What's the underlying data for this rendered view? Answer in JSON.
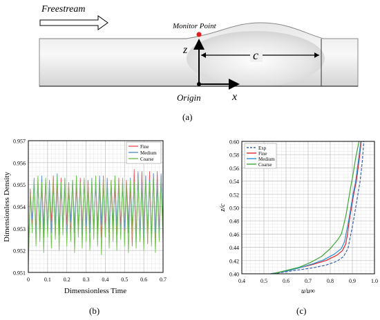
{
  "panel_a": {
    "freestream_label": "Freestream",
    "monitor_point_label": "Monitor Point",
    "origin_label": "Origin",
    "z_label": "z",
    "x_label": "x",
    "c_label": "c",
    "caption": "(a)",
    "colors": {
      "monitor_point": "#e02020",
      "body_light": "#f4f4f4",
      "body_dark": "#c8c8c8"
    }
  },
  "panel_b": {
    "caption": "(b)"
  },
  "panel_c": {
    "caption": "(c)"
  },
  "chart_data": [
    {
      "type": "line",
      "xlabel": "Dimensionless Time",
      "ylabel": "Dimensionless Density",
      "xlim": [
        0,
        0.7
      ],
      "ylim": [
        0.951,
        0.957
      ],
      "xticks": [
        "0",
        "0.1",
        "0.2",
        "0.3",
        "0.4",
        "0.5",
        "0.6",
        "0.7"
      ],
      "yticks": [
        "0.951",
        "0.952",
        "0.953",
        "0.954",
        "0.955",
        "0.956",
        "0.957"
      ],
      "grid": true,
      "legend": "top-right",
      "series": [
        {
          "name": "Fine",
          "color": "#e8565a",
          "x": [
            0,
            0.01,
            0.02,
            0.03,
            0.04,
            0.05,
            0.06,
            0.07,
            0.08,
            0.09,
            0.1,
            0.11,
            0.12,
            0.13,
            0.14,
            0.15,
            0.16,
            0.17,
            0.18,
            0.19,
            0.2,
            0.21,
            0.22,
            0.23,
            0.24,
            0.25,
            0.26,
            0.27,
            0.28,
            0.29,
            0.3,
            0.31,
            0.32,
            0.33,
            0.34,
            0.35,
            0.36,
            0.37,
            0.38,
            0.39,
            0.4,
            0.41,
            0.42,
            0.43,
            0.44,
            0.45,
            0.46,
            0.47,
            0.48,
            0.49,
            0.5,
            0.51,
            0.52,
            0.53,
            0.54,
            0.55,
            0.56,
            0.57,
            0.58,
            0.59,
            0.6,
            0.61,
            0.62,
            0.63,
            0.64,
            0.65,
            0.66,
            0.67,
            0.68,
            0.69,
            0.7
          ],
          "y": [
            0.9515,
            0.9548,
            0.9532,
            0.9551,
            0.9529,
            0.9553,
            0.9527,
            0.955,
            0.9531,
            0.9552,
            0.9528,
            0.9549,
            0.9533,
            0.9554,
            0.9526,
            0.955,
            0.953,
            0.9553,
            0.9529,
            0.9548,
            0.9532,
            0.9551,
            0.9527,
            0.9552,
            0.9531,
            0.9549,
            0.9528,
            0.9553,
            0.953,
            0.9551,
            0.9529,
            0.9552,
            0.9532,
            0.955,
            0.9527,
            0.9553,
            0.9531,
            0.9549,
            0.9526,
            0.9554,
            0.953,
            0.9551,
            0.9528,
            0.9552,
            0.9533,
            0.9548,
            0.9527,
            0.9553,
            0.9531,
            0.955,
            0.9529,
            0.9552,
            0.9532,
            0.9549,
            0.9522,
            0.9557,
            0.9526,
            0.9555,
            0.9524,
            0.9556,
            0.9527,
            0.9554,
            0.9523,
            0.9556,
            0.9526,
            0.9555,
            0.9525,
            0.9556,
            0.9528,
            0.9554,
            0.9526
          ]
        },
        {
          "name": "Medium",
          "color": "#5a8fd6",
          "x": [
            0,
            0.01,
            0.02,
            0.03,
            0.04,
            0.05,
            0.06,
            0.07,
            0.08,
            0.09,
            0.1,
            0.11,
            0.12,
            0.13,
            0.14,
            0.15,
            0.16,
            0.17,
            0.18,
            0.19,
            0.2,
            0.21,
            0.22,
            0.23,
            0.24,
            0.25,
            0.26,
            0.27,
            0.28,
            0.29,
            0.3,
            0.31,
            0.32,
            0.33,
            0.34,
            0.35,
            0.36,
            0.37,
            0.38,
            0.39,
            0.4,
            0.41,
            0.42,
            0.43,
            0.44,
            0.45,
            0.46,
            0.47,
            0.48,
            0.49,
            0.5,
            0.51,
            0.52,
            0.53,
            0.54,
            0.55,
            0.56,
            0.57,
            0.58,
            0.59,
            0.6,
            0.61,
            0.62,
            0.63,
            0.64,
            0.65,
            0.66,
            0.67,
            0.68,
            0.69,
            0.7
          ],
          "y": [
            0.9518,
            0.9545,
            0.9534,
            0.9553,
            0.9527,
            0.955,
            0.9531,
            0.9554,
            0.9526,
            0.9551,
            0.953,
            0.9552,
            0.9528,
            0.9549,
            0.9532,
            0.9555,
            0.9527,
            0.955,
            0.9531,
            0.9553,
            0.9526,
            0.9549,
            0.9533,
            0.9552,
            0.9528,
            0.9554,
            0.953,
            0.955,
            0.9527,
            0.9552,
            0.9531,
            0.9549,
            0.9528,
            0.9553,
            0.953,
            0.9551,
            0.9527,
            0.9554,
            0.9532,
            0.955,
            0.9526,
            0.9553,
            0.953,
            0.9549,
            0.9529,
            0.9554,
            0.9531,
            0.955,
            0.9527,
            0.9552,
            0.953,
            0.9549,
            0.9528,
            0.9553,
            0.9531,
            0.955,
            0.9523,
            0.9556,
            0.9527,
            0.9553,
            0.9526,
            0.9554,
            0.9529,
            0.9552,
            0.9525,
            0.9555,
            0.9528,
            0.9553,
            0.9527,
            0.9555,
            0.9529
          ]
        },
        {
          "name": "Coarse",
          "color": "#6cc24a",
          "x": [
            0,
            0.01,
            0.02,
            0.03,
            0.04,
            0.05,
            0.06,
            0.07,
            0.08,
            0.09,
            0.1,
            0.11,
            0.12,
            0.13,
            0.14,
            0.15,
            0.16,
            0.17,
            0.18,
            0.19,
            0.2,
            0.21,
            0.22,
            0.23,
            0.24,
            0.25,
            0.26,
            0.27,
            0.28,
            0.29,
            0.3,
            0.31,
            0.32,
            0.33,
            0.34,
            0.35,
            0.36,
            0.37,
            0.38,
            0.39,
            0.4,
            0.41,
            0.42,
            0.43,
            0.44,
            0.45,
            0.46,
            0.47,
            0.48,
            0.49,
            0.5,
            0.51,
            0.52,
            0.53,
            0.54,
            0.55,
            0.56,
            0.57,
            0.58,
            0.59,
            0.6,
            0.61,
            0.62,
            0.63,
            0.64,
            0.65,
            0.66,
            0.67,
            0.68,
            0.69,
            0.7
          ],
          "y": [
            0.9512,
            0.9546,
            0.9528,
            0.9552,
            0.9522,
            0.9554,
            0.9524,
            0.9551,
            0.9519,
            0.9553,
            0.9526,
            0.955,
            0.9521,
            0.9552,
            0.9525,
            0.9554,
            0.952,
            0.9551,
            0.9527,
            0.9553,
            0.9522,
            0.955,
            0.9524,
            0.9552,
            0.9519,
            0.9554,
            0.9526,
            0.9551,
            0.9521,
            0.9553,
            0.9524,
            0.955,
            0.952,
            0.9552,
            0.9525,
            0.9554,
            0.9522,
            0.9551,
            0.9518,
            0.9553,
            0.9526,
            0.955,
            0.9521,
            0.9552,
            0.9524,
            0.9554,
            0.952,
            0.9551,
            0.9525,
            0.9553,
            0.9522,
            0.955,
            0.9519,
            0.9552,
            0.9526,
            0.9551,
            0.9521,
            0.9553,
            0.9524,
            0.955,
            0.952,
            0.9552,
            0.9525,
            0.9551,
            0.9522,
            0.9553,
            0.9519,
            0.955,
            0.9524,
            0.9552,
            0.9523
          ]
        }
      ]
    },
    {
      "type": "line",
      "xlabel": "u/u∞",
      "ylabel": "z/c",
      "xlim": [
        0.4,
        1.0
      ],
      "ylim": [
        0.4,
        0.6
      ],
      "xticks": [
        "0.4",
        "0.5",
        "0.6",
        "0.7",
        "0.8",
        "0.9",
        "1.0"
      ],
      "yticks": [
        "0.40",
        "0.42",
        "0.44",
        "0.46",
        "0.48",
        "0.50",
        "0.52",
        "0.54",
        "0.56",
        "0.58",
        "0.60"
      ],
      "grid": true,
      "legend": "top-left",
      "series": [
        {
          "name": "Exp",
          "color": "#3a5fb0",
          "dashed": true,
          "x": [
            0.54,
            0.6,
            0.66,
            0.72,
            0.78,
            0.83,
            0.86,
            0.88,
            0.893,
            0.905,
            0.915,
            0.925,
            0.935,
            0.945,
            0.952
          ],
          "y": [
            0.4,
            0.403,
            0.406,
            0.409,
            0.413,
            0.419,
            0.426,
            0.438,
            0.46,
            0.48,
            0.5,
            0.52,
            0.54,
            0.57,
            0.6
          ]
        },
        {
          "name": "Fine",
          "color": "#e0242a",
          "x": [
            0.53,
            0.6,
            0.66,
            0.72,
            0.78,
            0.83,
            0.855,
            0.87,
            0.878,
            0.886,
            0.896,
            0.906,
            0.918,
            0.93,
            0.94
          ],
          "y": [
            0.4,
            0.404,
            0.409,
            0.414,
            0.42,
            0.428,
            0.435,
            0.445,
            0.46,
            0.48,
            0.5,
            0.52,
            0.54,
            0.57,
            0.6
          ]
        },
        {
          "name": "Medium",
          "color": "#2a8ed4",
          "x": [
            0.53,
            0.6,
            0.66,
            0.72,
            0.77,
            0.82,
            0.85,
            0.865,
            0.874,
            0.883,
            0.893,
            0.903,
            0.915,
            0.927,
            0.938
          ],
          "y": [
            0.4,
            0.404,
            0.409,
            0.415,
            0.421,
            0.43,
            0.438,
            0.449,
            0.465,
            0.48,
            0.5,
            0.52,
            0.54,
            0.57,
            0.6
          ]
        },
        {
          "name": "Coarse",
          "color": "#3aa832",
          "x": [
            0.54,
            0.6,
            0.66,
            0.71,
            0.76,
            0.8,
            0.835,
            0.85,
            0.862,
            0.872,
            0.882,
            0.892,
            0.903,
            0.915,
            0.93
          ],
          "y": [
            0.4,
            0.405,
            0.41,
            0.417,
            0.426,
            0.438,
            0.452,
            0.46,
            0.475,
            0.49,
            0.51,
            0.53,
            0.55,
            0.575,
            0.6
          ]
        }
      ]
    }
  ]
}
